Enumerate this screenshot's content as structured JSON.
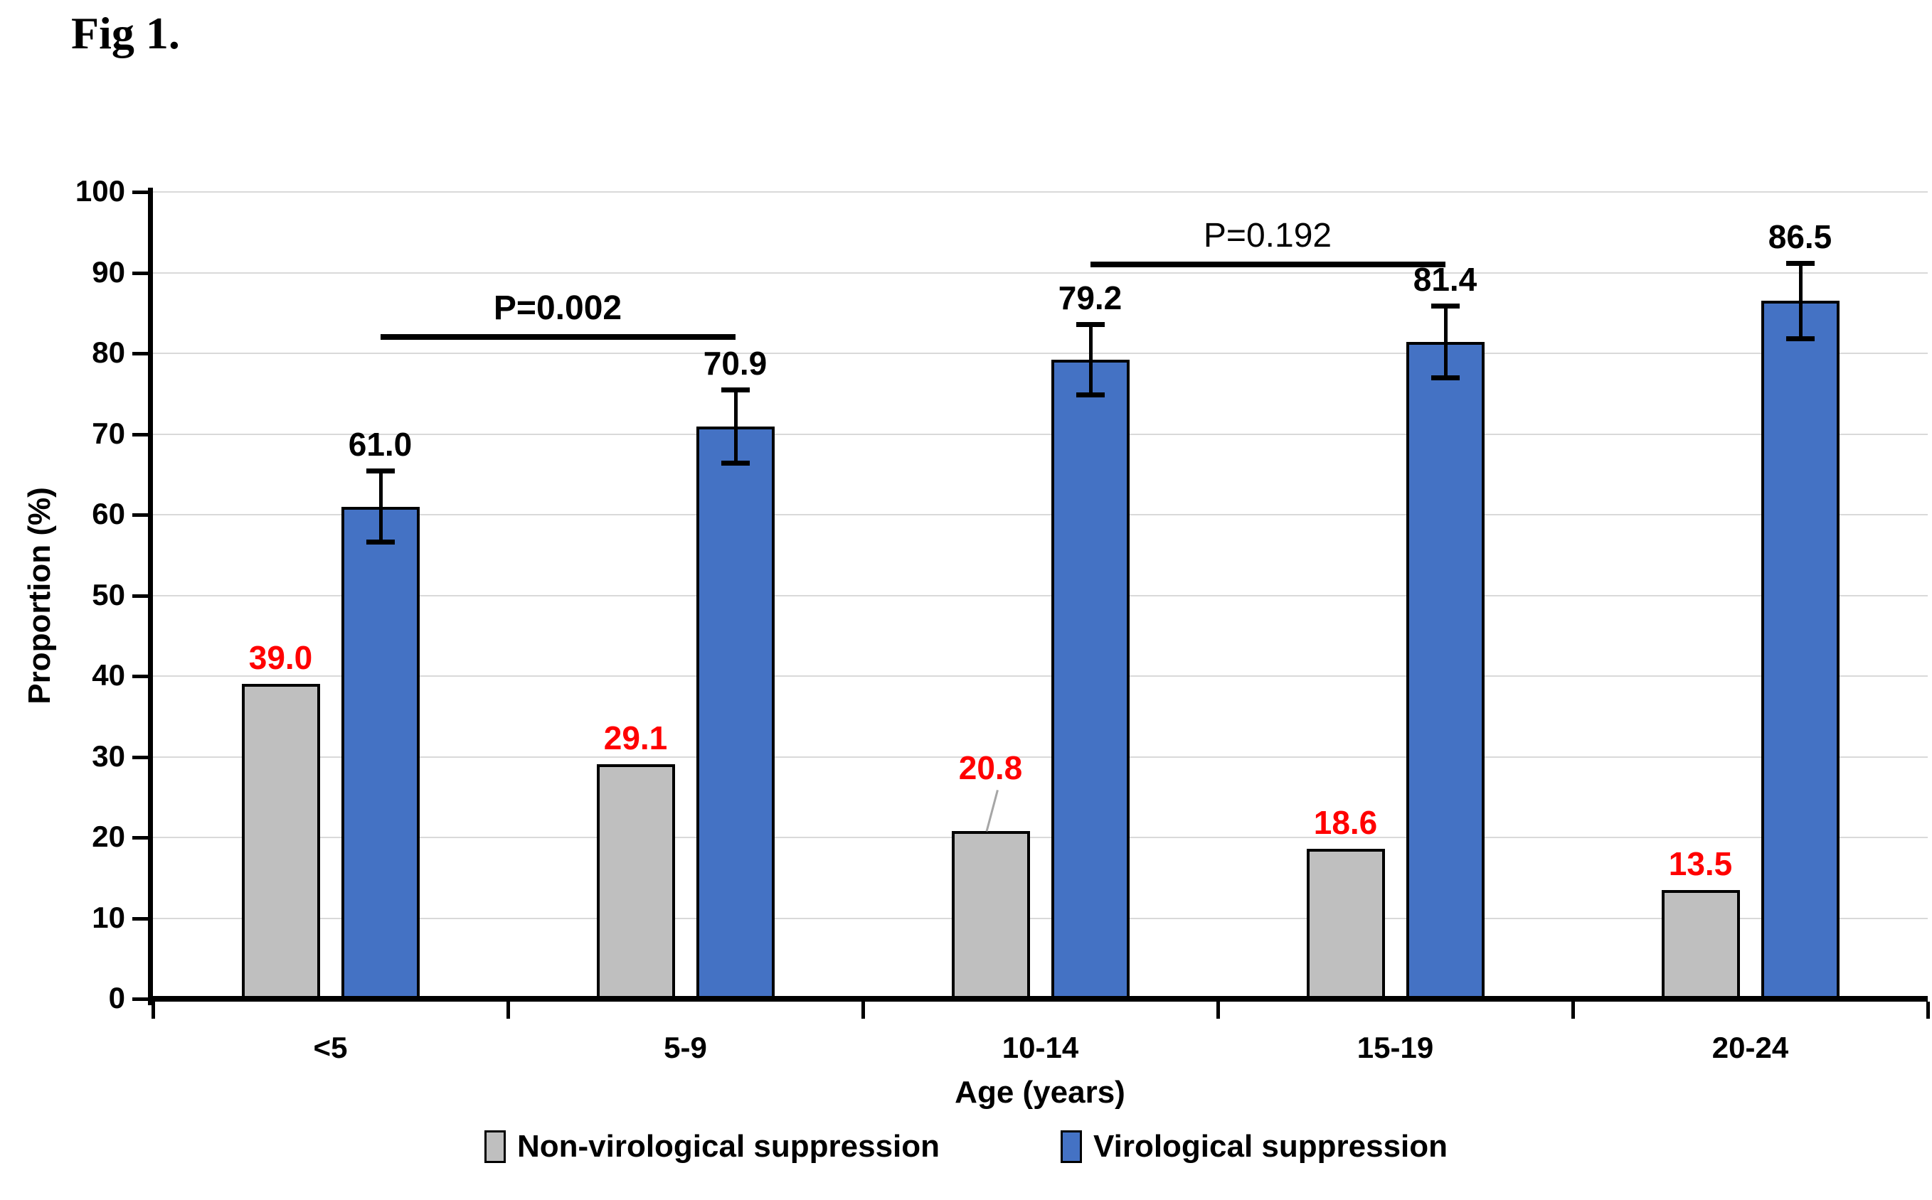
{
  "figure_label": "Fig 1.",
  "colors": {
    "non_suppression_fill": "#BFBFBF",
    "suppression_fill": "#4472C4",
    "bar_border": "#000000",
    "gridline": "#D9D9D9",
    "axis": "#000000",
    "red_label": "#FF0000",
    "leader_line": "#A6A6A6"
  },
  "chart_data": {
    "type": "bar",
    "title": "Fig 1.",
    "categories": [
      "<5",
      "5-9",
      "10-14",
      "15-19",
      "20-24"
    ],
    "xlabel": "Age (years)",
    "ylabel": "Proportion  (%)",
    "ylim": [
      0,
      100
    ],
    "ytick_interval": 10,
    "grid": "horizontal",
    "legend_position": "bottom",
    "series": [
      {
        "name": "Non-virological suppression",
        "color": "#BFBFBF",
        "label_color": "#FF0000",
        "values": [
          39.0,
          29.1,
          20.8,
          18.6,
          13.5
        ],
        "raised_label_category": 2
      },
      {
        "name": "Virological suppression",
        "color": "#4472C4",
        "label_color": "#000000",
        "values": [
          61.0,
          70.9,
          79.2,
          81.4,
          86.5
        ],
        "error_bars": [
          {
            "low": 56.6,
            "high": 65.5
          },
          {
            "low": 66.3,
            "high": 75.5
          },
          {
            "low": 74.8,
            "high": 83.6
          },
          {
            "low": 76.9,
            "high": 85.9
          },
          {
            "low": 81.8,
            "high": 91.2
          }
        ]
      }
    ],
    "annotations": [
      {
        "text": "P=0.002",
        "bold": true,
        "between": [
          "<5",
          "5-9"
        ],
        "line_y": 82
      },
      {
        "text": "P=0.192",
        "bold": false,
        "between": [
          "10-14",
          "15-19"
        ],
        "line_y": 91
      }
    ]
  }
}
